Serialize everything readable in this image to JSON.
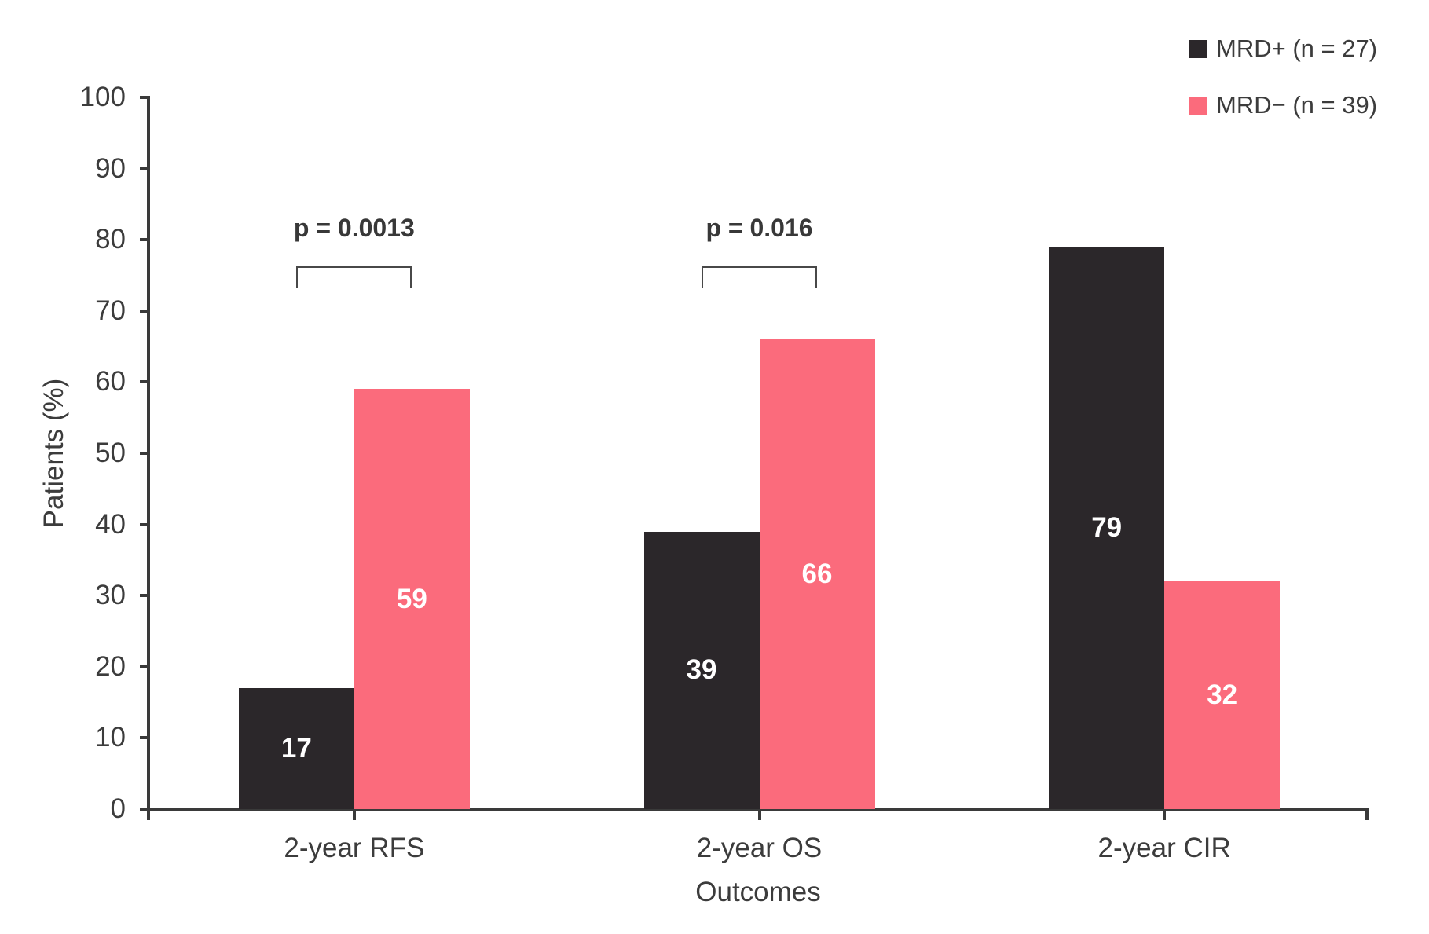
{
  "chart_data": {
    "type": "bar",
    "title": "",
    "categories": [
      "2-year RFS",
      "2-year OS",
      "2-year CIR"
    ],
    "series": [
      {
        "name": "MRD+ (n = 27)",
        "color": "#2B272A",
        "values": [
          17,
          39,
          79
        ]
      },
      {
        "name": "MRD− (n = 39)",
        "color": "#FB6B7C",
        "values": [
          59,
          66,
          32
        ]
      }
    ],
    "bar_value_labels": [
      "17",
      "39",
      "79",
      "59",
      "66",
      "32"
    ],
    "bar_label_color": "#FFFFFF",
    "xlabel": "Outcomes",
    "ylabel": "Patients (%)",
    "ylim": [
      0,
      100
    ],
    "yticks": [
      "0",
      "10",
      "20",
      "30",
      "40",
      "50",
      "60",
      "70",
      "80",
      "90",
      "100"
    ],
    "grid": false,
    "legend_position": "top-right",
    "axis_color": "#3A3A3A",
    "text_color": "#3C3C3C",
    "annotations": [
      {
        "text": "p = 0.0013",
        "category_index": 0
      },
      {
        "text": "p = 0.016",
        "category_index": 1
      }
    ]
  }
}
